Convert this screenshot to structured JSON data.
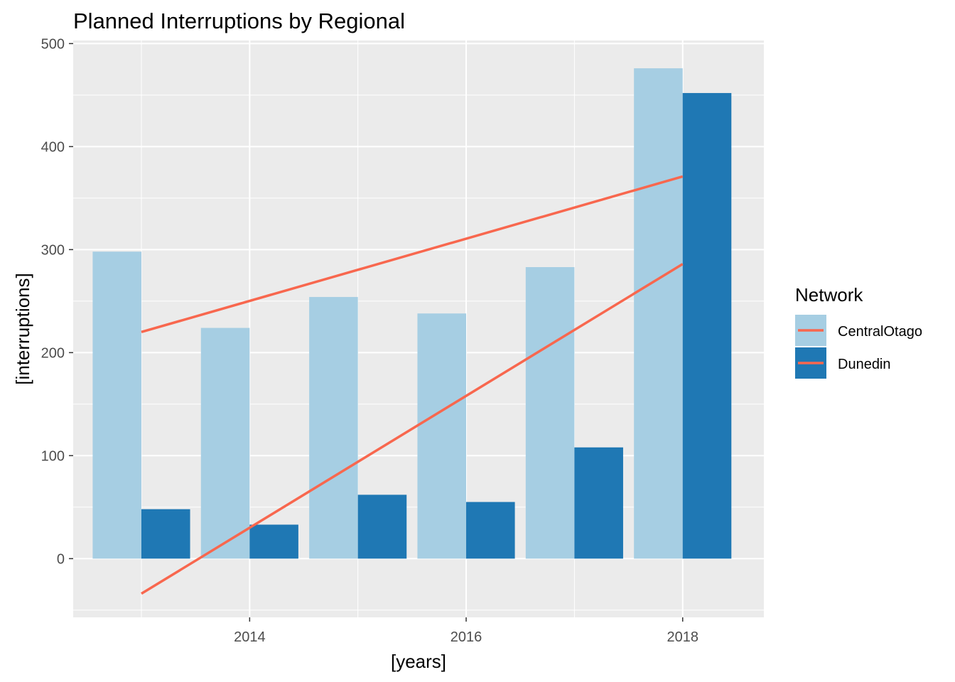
{
  "chart_data": {
    "type": "bar",
    "title": "Planned Interruptions by Regional",
    "xlabel": "[years]",
    "ylabel": "[interruptions]",
    "x": [
      2013,
      2014,
      2015,
      2016,
      2017,
      2018
    ],
    "x_ticks": [
      2014,
      2016,
      2018
    ],
    "y_ticks": [
      0,
      100,
      200,
      300,
      400,
      500
    ],
    "xlim": [
      2012.37,
      2018.75
    ],
    "ylim": [
      -57,
      503
    ],
    "grid": true,
    "legend": {
      "title": "Network",
      "position": "right"
    },
    "series": [
      {
        "name": "CentralOtago",
        "color": "#a6cee3",
        "values": [
          298,
          224,
          254,
          238,
          283,
          476
        ]
      },
      {
        "name": "Dunedin",
        "color": "#1f78b4",
        "values": [
          48,
          33,
          62,
          55,
          108,
          452
        ]
      }
    ],
    "trend_lines": [
      {
        "series": "CentralOtago",
        "color": "#f8674e",
        "x": [
          2013,
          2018
        ],
        "y": [
          220,
          371
        ]
      },
      {
        "series": "Dunedin",
        "color": "#f8674e",
        "x": [
          2013,
          2018
        ],
        "y": [
          -34,
          286
        ]
      }
    ]
  }
}
